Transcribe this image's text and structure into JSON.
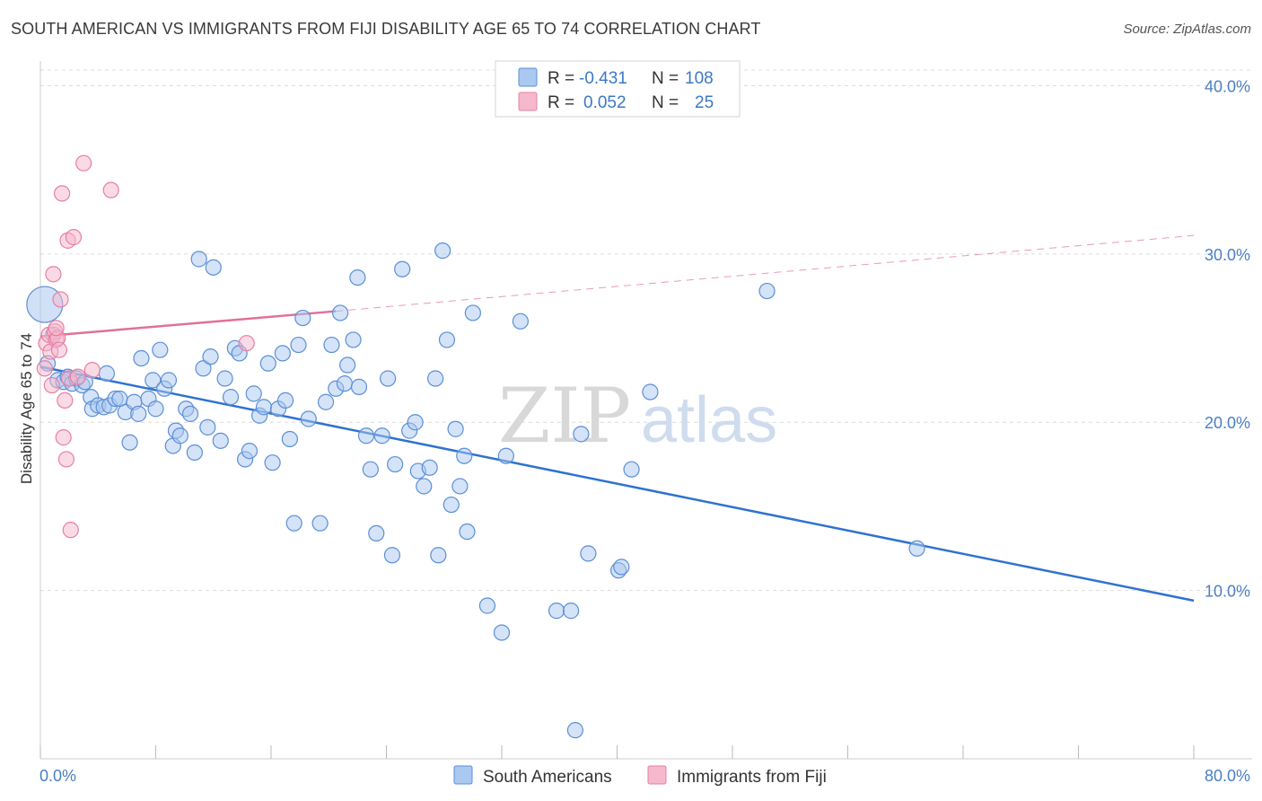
{
  "title": "SOUTH AMERICAN VS IMMIGRANTS FROM FIJI DISABILITY AGE 65 TO 74 CORRELATION CHART",
  "source": "Source: ZipAtlas.com",
  "watermark": {
    "zip": "ZIP",
    "atlas": "atlas"
  },
  "legend_top": {
    "r_label": "R =",
    "n_label": "N =",
    "rows": [
      {
        "r": "-0.431",
        "n": "108",
        "color": "#aac8f0"
      },
      {
        "r": "0.052",
        "n": "25",
        "color": "#f6b8cc"
      }
    ]
  },
  "legend_bottom": [
    {
      "label": "South Americans",
      "color": "#aac8f0"
    },
    {
      "label": "Immigrants from Fiji",
      "color": "#f6b8cc"
    }
  ],
  "chart_data": {
    "type": "scatter",
    "title": "SOUTH AMERICAN VS IMMIGRANTS FROM FIJI DISABILITY AGE 65 TO 74 CORRELATION CHART",
    "xlabel": "",
    "ylabel": "Disability Age 65 to 74",
    "xlim": [
      0,
      80
    ],
    "ylim": [
      0,
      42
    ],
    "x_tick_labels": [
      "0.0%",
      "80.0%"
    ],
    "y_ticks": [
      10,
      20,
      30,
      40
    ],
    "y_tick_labels": [
      "10.0%",
      "20.0%",
      "30.0%",
      "40.0%"
    ],
    "grid": true,
    "colors": {
      "blue": "#5b8fd6",
      "blue_fill": "#aac8f0",
      "pink": "#e77fa3",
      "pink_fill": "#f6b8cc",
      "line_blue": "#2f72d0",
      "line_pink": "#e0709a"
    },
    "series": [
      {
        "name": "South Americans",
        "points": [
          [
            0.3,
            27.0
          ],
          [
            0.5,
            23.5
          ],
          [
            0.9,
            25.2
          ],
          [
            1.2,
            22.5
          ],
          [
            1.6,
            22.4
          ],
          [
            1.9,
            22.7
          ],
          [
            2.2,
            22.3
          ],
          [
            2.5,
            22.6
          ],
          [
            2.9,
            22.2
          ],
          [
            3.1,
            22.4
          ],
          [
            3.5,
            21.5
          ],
          [
            3.6,
            20.8
          ],
          [
            4.0,
            21.0
          ],
          [
            4.4,
            20.9
          ],
          [
            4.6,
            22.9
          ],
          [
            4.8,
            21.0
          ],
          [
            5.2,
            21.4
          ],
          [
            5.5,
            21.4
          ],
          [
            5.9,
            20.6
          ],
          [
            6.2,
            18.8
          ],
          [
            6.5,
            21.2
          ],
          [
            6.8,
            20.5
          ],
          [
            7.0,
            23.8
          ],
          [
            7.5,
            21.4
          ],
          [
            7.8,
            22.5
          ],
          [
            8.0,
            20.8
          ],
          [
            8.3,
            24.3
          ],
          [
            8.6,
            22.0
          ],
          [
            8.9,
            22.5
          ],
          [
            9.2,
            18.6
          ],
          [
            9.4,
            19.5
          ],
          [
            9.7,
            19.2
          ],
          [
            10.1,
            20.8
          ],
          [
            10.4,
            20.5
          ],
          [
            10.7,
            18.2
          ],
          [
            11.0,
            29.7
          ],
          [
            11.3,
            23.2
          ],
          [
            11.6,
            19.7
          ],
          [
            11.8,
            23.9
          ],
          [
            12.0,
            29.2
          ],
          [
            12.5,
            18.9
          ],
          [
            12.8,
            22.6
          ],
          [
            13.2,
            21.5
          ],
          [
            13.5,
            24.4
          ],
          [
            13.8,
            24.1
          ],
          [
            14.2,
            17.8
          ],
          [
            14.5,
            18.3
          ],
          [
            14.8,
            21.7
          ],
          [
            15.2,
            20.4
          ],
          [
            15.5,
            20.9
          ],
          [
            15.8,
            23.5
          ],
          [
            16.1,
            17.6
          ],
          [
            16.5,
            20.8
          ],
          [
            16.8,
            24.1
          ],
          [
            17.0,
            21.3
          ],
          [
            17.3,
            19.0
          ],
          [
            17.6,
            14.0
          ],
          [
            17.9,
            24.6
          ],
          [
            18.2,
            26.2
          ],
          [
            18.6,
            20.2
          ],
          [
            19.4,
            14.0
          ],
          [
            19.8,
            21.2
          ],
          [
            20.2,
            24.6
          ],
          [
            20.5,
            22.0
          ],
          [
            20.8,
            26.5
          ],
          [
            21.1,
            22.3
          ],
          [
            21.3,
            23.4
          ],
          [
            21.7,
            24.9
          ],
          [
            22.1,
            22.1
          ],
          [
            22.0,
            28.6
          ],
          [
            22.6,
            19.2
          ],
          [
            22.9,
            17.2
          ],
          [
            23.3,
            13.4
          ],
          [
            23.7,
            19.2
          ],
          [
            24.1,
            22.6
          ],
          [
            24.4,
            12.1
          ],
          [
            24.6,
            17.5
          ],
          [
            25.1,
            29.1
          ],
          [
            25.6,
            19.5
          ],
          [
            26.0,
            20.0
          ],
          [
            26.2,
            17.1
          ],
          [
            26.6,
            16.2
          ],
          [
            27.0,
            17.3
          ],
          [
            27.4,
            22.6
          ],
          [
            27.6,
            12.1
          ],
          [
            27.9,
            30.2
          ],
          [
            28.2,
            24.9
          ],
          [
            28.5,
            15.1
          ],
          [
            28.8,
            19.6
          ],
          [
            29.1,
            16.2
          ],
          [
            29.4,
            18.0
          ],
          [
            29.6,
            13.5
          ],
          [
            30.0,
            26.5
          ],
          [
            31.0,
            9.1
          ],
          [
            32.0,
            7.5
          ],
          [
            32.3,
            18.0
          ],
          [
            33.3,
            26.0
          ],
          [
            35.8,
            8.8
          ],
          [
            36.8,
            8.8
          ],
          [
            37.5,
            19.3
          ],
          [
            38.0,
            12.2
          ],
          [
            40.1,
            11.2
          ],
          [
            40.3,
            11.4
          ],
          [
            41.0,
            17.2
          ],
          [
            42.3,
            21.8
          ],
          [
            37.1,
            1.7
          ],
          [
            50.4,
            27.8
          ],
          [
            60.8,
            12.5
          ]
        ]
      },
      {
        "name": "Immigrants from Fiji",
        "points": [
          [
            0.3,
            23.2
          ],
          [
            0.4,
            24.7
          ],
          [
            0.6,
            25.2
          ],
          [
            0.7,
            24.2
          ],
          [
            0.8,
            22.2
          ],
          [
            0.9,
            28.8
          ],
          [
            1.0,
            25.4
          ],
          [
            1.1,
            24.9
          ],
          [
            1.2,
            25.0
          ],
          [
            1.3,
            24.3
          ],
          [
            1.4,
            27.3
          ],
          [
            1.5,
            33.6
          ],
          [
            1.6,
            19.1
          ],
          [
            1.7,
            21.3
          ],
          [
            1.8,
            17.8
          ],
          [
            1.9,
            30.8
          ],
          [
            2.0,
            22.6
          ],
          [
            2.1,
            13.6
          ],
          [
            2.3,
            31.0
          ],
          [
            2.6,
            22.7
          ],
          [
            3.0,
            35.4
          ],
          [
            3.6,
            23.1
          ],
          [
            4.9,
            33.8
          ],
          [
            1.1,
            25.6
          ],
          [
            14.3,
            24.7
          ]
        ]
      }
    ],
    "trendlines": [
      {
        "series": "South Americans",
        "from": [
          0,
          23.3
        ],
        "to": [
          80,
          9.4
        ],
        "style": "solid"
      },
      {
        "series": "Immigrants from Fiji",
        "from": [
          0,
          25.1
        ],
        "to": [
          20.5,
          26.6
        ],
        "style": "solid"
      },
      {
        "series": "Immigrants from Fiji",
        "from": [
          20.5,
          26.6
        ],
        "to": [
          80,
          31.1
        ],
        "style": "dashed"
      }
    ]
  }
}
